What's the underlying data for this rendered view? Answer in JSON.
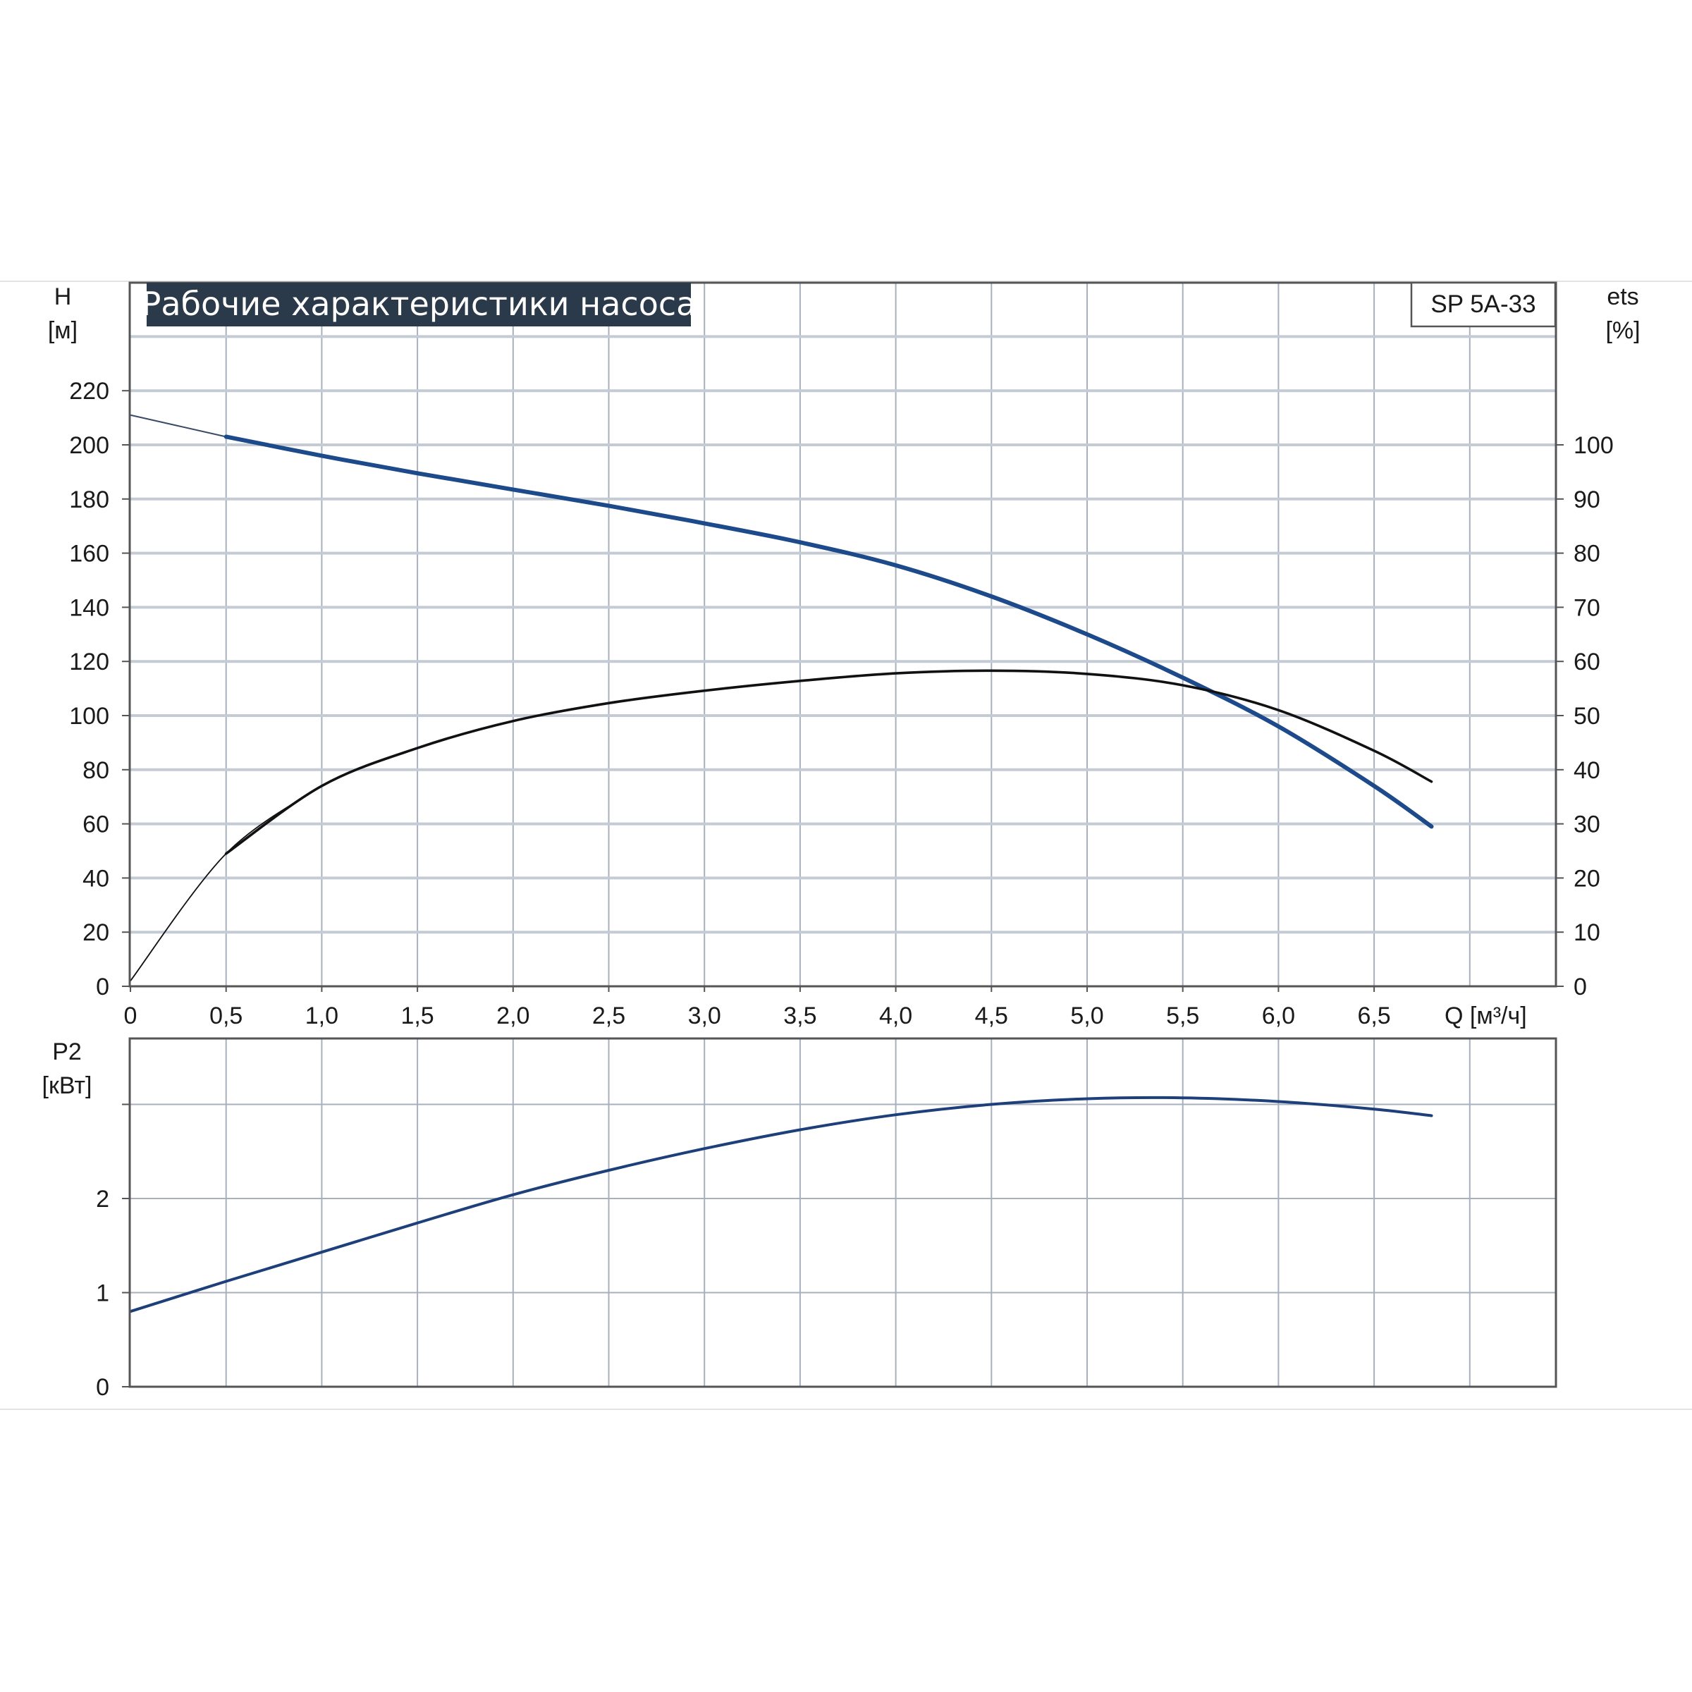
{
  "title": "Рабочие характеристики насоса",
  "model": "SP 5A-33",
  "colors": {
    "title_bg": "#2b3a4a",
    "head_curve": "#1d4a8a",
    "eff_curve": "#111111",
    "power_curve": "#1d3f7a"
  },
  "top": {
    "y_label_left": "H",
    "y_unit_left": "[м]",
    "y_label_right": "ets",
    "y_unit_right": "[%]",
    "x_label": "Q [м³/ч]",
    "x_ticks": [
      "0",
      "0,5",
      "1,0",
      "1,5",
      "2,0",
      "2,5",
      "3,0",
      "3,5",
      "4,0",
      "4,5",
      "5,0",
      "5,5",
      "6,0",
      "6,5"
    ],
    "y_ticks_left": [
      "0",
      "20",
      "40",
      "60",
      "80",
      "100",
      "120",
      "140",
      "160",
      "180",
      "200",
      "220"
    ],
    "y_ticks_right": [
      "0",
      "10",
      "20",
      "30",
      "40",
      "50",
      "60",
      "70",
      "80",
      "90",
      "100"
    ]
  },
  "bottom": {
    "y_label": "P2",
    "y_unit": "[кВт]",
    "y_ticks": [
      "0",
      "1",
      "2"
    ]
  },
  "chart_data": [
    {
      "type": "line",
      "xlabel": "Q [м³/ч]",
      "ylabel": "H [м]",
      "y2label": "ets [%]",
      "xlim": [
        0,
        7.3
      ],
      "ylim": [
        0,
        240
      ],
      "y2lim": [
        0,
        120
      ],
      "grid": true,
      "series": [
        {
          "axis": "left",
          "x": [
            0,
            0.5,
            1.0,
            1.5,
            2.0,
            2.5,
            3.0,
            3.5,
            4.0,
            4.5,
            5.0,
            5.5,
            6.0,
            6.5,
            6.8
          ],
          "values": [
            211,
            203,
            196,
            189.5,
            183.5,
            177.5,
            171,
            164,
            155.5,
            144,
            130,
            114,
            96,
            74,
            59
          ]
        },
        {
          "axis": "right",
          "x": [
            0,
            0.5,
            1.0,
            1.5,
            2.0,
            2.5,
            3.0,
            3.5,
            4.0,
            4.5,
            5.0,
            5.5,
            6.0,
            6.5,
            6.8
          ],
          "values": [
            1,
            24.5,
            37,
            44,
            49,
            52.3,
            54.6,
            56.4,
            57.8,
            58.3,
            57.7,
            55.6,
            51,
            43.5,
            37.8
          ]
        }
      ]
    },
    {
      "type": "line",
      "xlabel": "Q [м³/ч]",
      "ylabel": "P2 [кВт]",
      "xlim": [
        0,
        7.3
      ],
      "ylim": [
        0,
        3.7
      ],
      "grid": true,
      "series": [
        {
          "x": [
            0,
            0.5,
            1.0,
            1.5,
            2.0,
            2.5,
            3.0,
            3.5,
            4.0,
            4.5,
            5.0,
            5.5,
            6.0,
            6.5,
            6.8
          ],
          "values": [
            0.8,
            1.12,
            1.43,
            1.74,
            2.04,
            2.3,
            2.53,
            2.73,
            2.89,
            3.0,
            3.06,
            3.07,
            3.03,
            2.95,
            2.88
          ]
        }
      ]
    }
  ]
}
